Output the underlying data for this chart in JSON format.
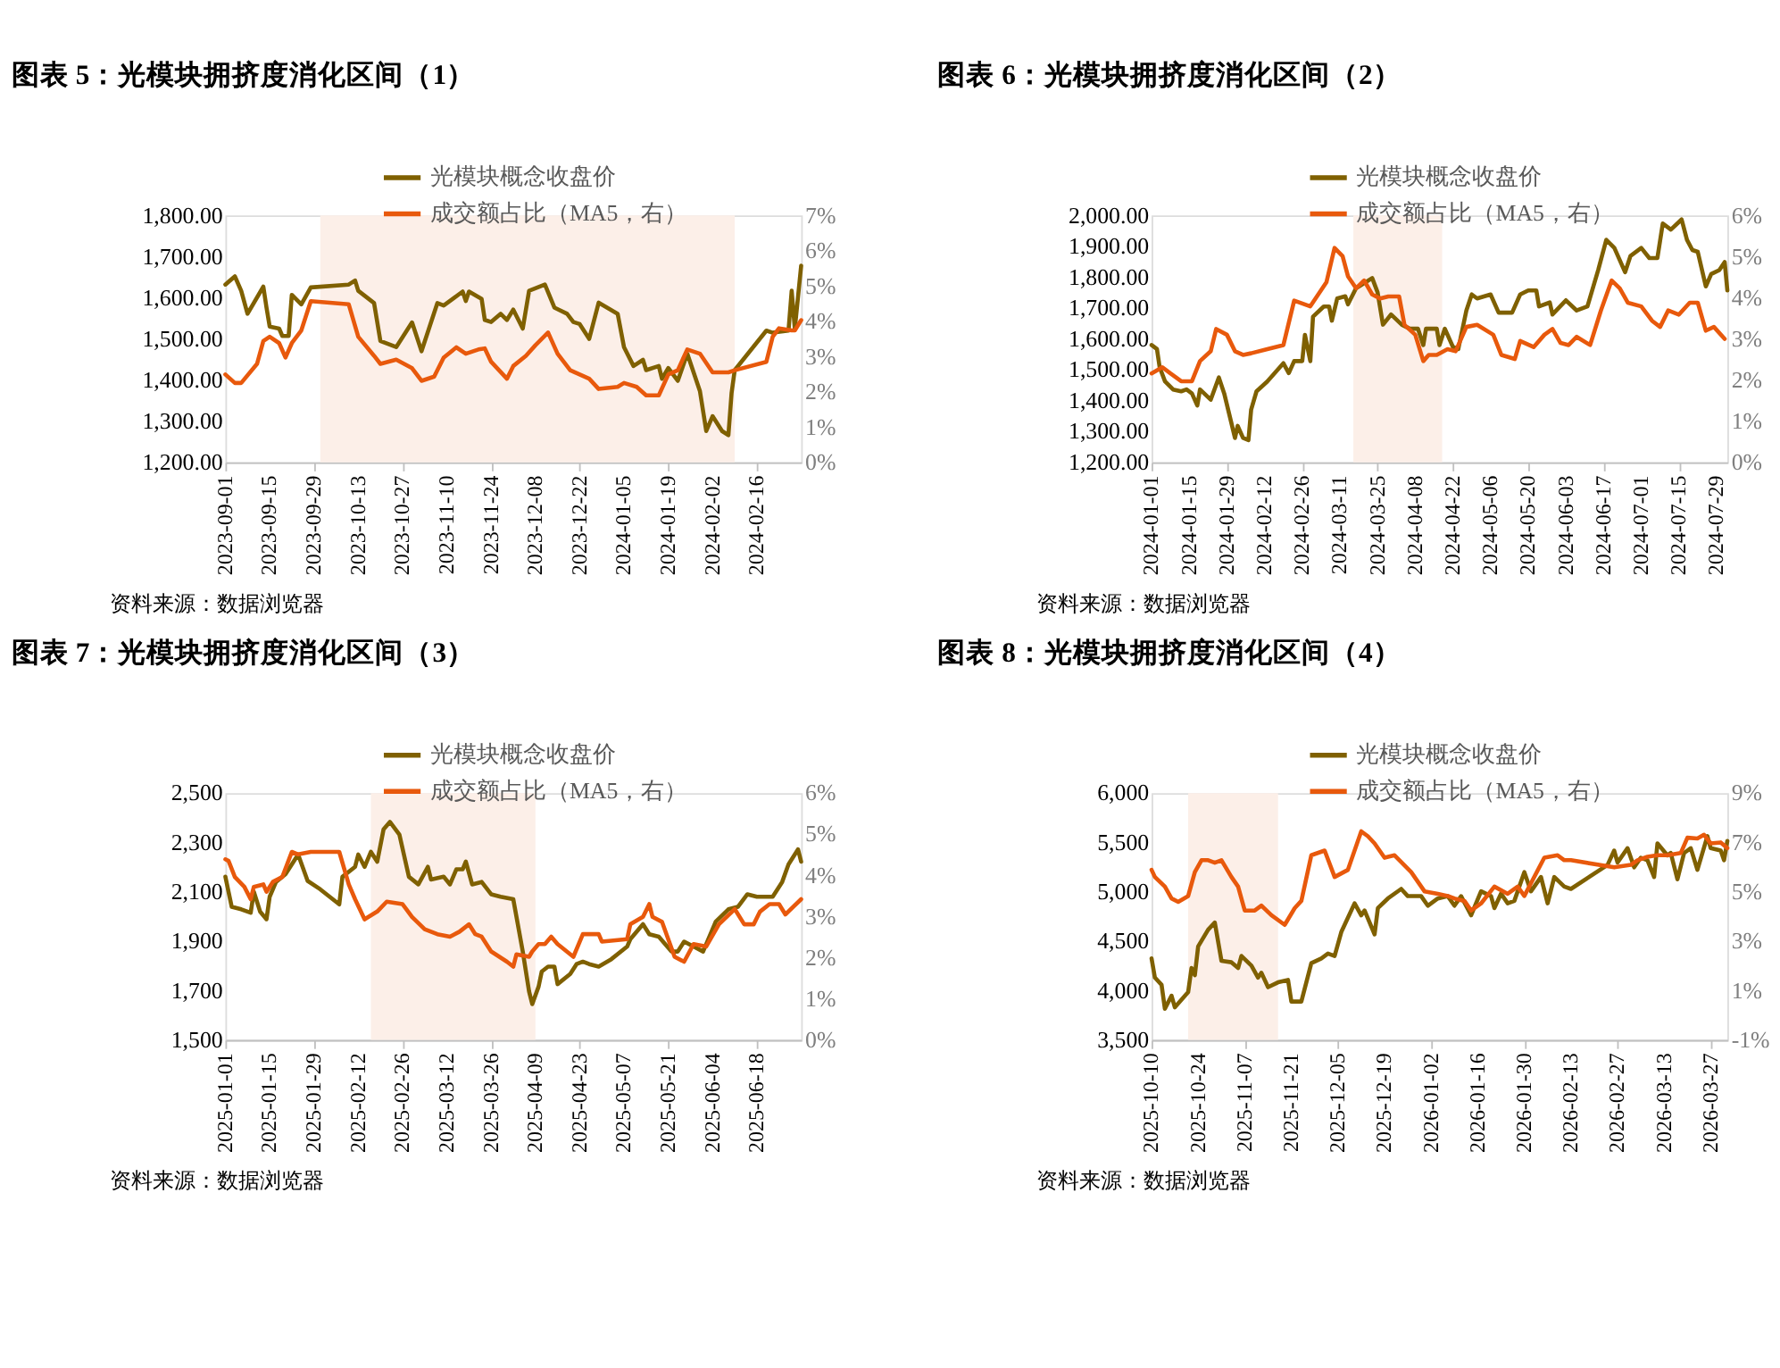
{
  "chart_data": [
    {
      "type": "line",
      "title": "图表 5：光模块拥挤度消化区间（1）",
      "annotations": [
        "资料来源：数据浏览器"
      ],
      "legend": "top",
      "grid": false,
      "xlim": [
        "2023-09-01",
        "2024-03-01"
      ],
      "xticks": [
        "2023-09-01",
        "2023-09-15",
        "2023-09-29",
        "2023-10-13",
        "2023-10-27",
        "2023-11-10",
        "2023-11-24",
        "2023-12-08",
        "2023-12-22",
        "2024-01-05",
        "2024-01-19",
        "2024-02-02",
        "2024-02-16"
      ],
      "ylim": [
        1200,
        1800
      ],
      "yticks": [
        {
          "value": 1200,
          "label": "1,200.00"
        },
        {
          "value": 1300,
          "label": "1,300.00"
        },
        {
          "value": 1400,
          "label": "1,400.00"
        },
        {
          "value": 1500,
          "label": "1,500.00"
        },
        {
          "value": 1600,
          "label": "1,600.00"
        },
        {
          "value": 1700,
          "label": "1,700.00"
        },
        {
          "value": 1800,
          "label": "1,800.00"
        }
      ],
      "y2lim": [
        0,
        7
      ],
      "y2ticks": [
        {
          "value": 0,
          "label": "0%"
        },
        {
          "value": 1,
          "label": "1%"
        },
        {
          "value": 2,
          "label": "2%"
        },
        {
          "value": 3,
          "label": "3%"
        },
        {
          "value": 4,
          "label": "4%"
        },
        {
          "value": 5,
          "label": "5%"
        },
        {
          "value": 6,
          "label": "6%"
        },
        {
          "value": 7,
          "label": "7%"
        }
      ],
      "bands": [
        {
          "axis": "x",
          "from": "2023-10-01",
          "to": "2024-02-09",
          "color": "#fcefe8"
        }
      ],
      "series": [
        {
          "name": "光模块概念收盘价",
          "color": "#7f6000",
          "x": [
            "2023-09-01",
            "2023-09-04",
            "2023-09-06",
            "2023-09-08",
            "2023-09-13",
            "2023-09-14",
            "2023-09-15",
            "2023-09-18",
            "2023-09-19",
            "2023-09-21",
            "2023-09-22",
            "2023-09-25",
            "2023-09-28",
            "2023-10-10",
            "2023-10-12",
            "2023-10-13",
            "2023-10-18",
            "2023-10-20",
            "2023-10-25",
            "2023-10-30",
            "2023-11-02",
            "2023-11-07",
            "2023-11-09",
            "2023-11-15",
            "2023-11-16",
            "2023-11-17",
            "2023-11-21",
            "2023-11-22",
            "2023-11-24",
            "2023-11-27",
            "2023-11-29",
            "2023-12-01",
            "2023-12-04",
            "2023-12-06",
            "2023-12-11",
            "2023-12-14",
            "2023-12-18",
            "2023-12-20",
            "2023-12-22",
            "2023-12-25",
            "2023-12-28",
            "2024-01-03",
            "2024-01-05",
            "2024-01-08",
            "2024-01-11",
            "2024-01-12",
            "2024-01-16",
            "2024-01-17",
            "2024-01-19",
            "2024-01-22",
            "2024-01-25",
            "2024-01-29",
            "2024-01-31",
            "2024-02-02",
            "2024-02-05",
            "2024-02-07",
            "2024-02-08",
            "2024-02-09",
            "2024-02-19",
            "2024-02-21",
            "2024-02-26",
            "2024-02-27",
            "2024-02-28",
            "2024-03-01"
          ],
          "values": [
            1632,
            1652,
            1617,
            1561,
            1627,
            1576,
            1530,
            1525,
            1507,
            1507,
            1607,
            1584,
            1625,
            1632,
            1642,
            1617,
            1587,
            1495,
            1480,
            1540,
            1470,
            1587,
            1581,
            1615,
            1592,
            1615,
            1597,
            1546,
            1541,
            1561,
            1546,
            1571,
            1525,
            1617,
            1632,
            1576,
            1561,
            1541,
            1536,
            1500,
            1588,
            1561,
            1480,
            1434,
            1449,
            1424,
            1434,
            1403,
            1429,
            1398,
            1464,
            1373,
            1276,
            1312,
            1276,
            1266,
            1368,
            1424,
            1520,
            1515,
            1520,
            1617,
            1525,
            1678
          ]
        },
        {
          "name": "成交额占比（MA5，右）",
          "color": "#e8590c",
          "axis": "y2",
          "x": [
            "2023-09-01",
            "2023-09-04",
            "2023-09-06",
            "2023-09-11",
            "2023-09-13",
            "2023-09-15",
            "2023-09-18",
            "2023-09-20",
            "2023-09-22",
            "2023-09-25",
            "2023-09-28",
            "2023-10-10",
            "2023-10-13",
            "2023-10-18",
            "2023-10-20",
            "2023-10-25",
            "2023-10-30",
            "2023-11-02",
            "2023-11-06",
            "2023-11-09",
            "2023-11-13",
            "2023-11-16",
            "2023-11-20",
            "2023-11-22",
            "2023-11-24",
            "2023-11-29",
            "2023-12-01",
            "2023-12-05",
            "2023-12-08",
            "2023-12-12",
            "2023-12-15",
            "2023-12-19",
            "2023-12-25",
            "2023-12-28",
            "2024-01-03",
            "2024-01-05",
            "2024-01-09",
            "2024-01-12",
            "2024-01-16",
            "2024-01-19",
            "2024-01-22",
            "2024-01-25",
            "2024-01-29",
            "2024-02-02",
            "2024-02-07",
            "2024-02-09",
            "2024-02-19",
            "2024-02-21",
            "2024-02-23",
            "2024-02-27",
            "2024-02-28",
            "2024-03-01"
          ],
          "values": [
            2.49,
            2.25,
            2.25,
            2.79,
            3.44,
            3.56,
            3.38,
            2.97,
            3.38,
            3.74,
            4.57,
            4.48,
            3.56,
            3.02,
            2.79,
            2.91,
            2.67,
            2.31,
            2.43,
            2.97,
            3.26,
            3.08,
            3.2,
            3.23,
            2.85,
            2.37,
            2.73,
            3.02,
            3.32,
            3.68,
            3.08,
            2.61,
            2.37,
            2.08,
            2.14,
            2.25,
            2.14,
            1.9,
            1.9,
            2.49,
            2.61,
            3.2,
            3.08,
            2.55,
            2.55,
            2.61,
            2.85,
            3.56,
            3.8,
            3.74,
            3.74,
            4.03
          ]
        }
      ]
    },
    {
      "type": "line",
      "title": "图表 6：光模块拥挤度消化区间（2）",
      "annotations": [
        "资料来源：数据浏览器"
      ],
      "legend": "top",
      "grid": false,
      "xlim": [
        "2024-01-01",
        "2024-08-02"
      ],
      "xticks": [
        "2024-01-01",
        "2024-01-15",
        "2024-01-29",
        "2024-02-12",
        "2024-02-26",
        "2024-03-11",
        "2024-03-25",
        "2024-04-08",
        "2024-04-22",
        "2024-05-06",
        "2024-05-20",
        "2024-06-03",
        "2024-06-17",
        "2024-07-01",
        "2024-07-15",
        "2024-07-29"
      ],
      "ylim": [
        1200,
        2000
      ],
      "yticks": [
        {
          "value": 1200,
          "label": "1,200.00"
        },
        {
          "value": 1300,
          "label": "1,300.00"
        },
        {
          "value": 1400,
          "label": "1,400.00"
        },
        {
          "value": 1500,
          "label": "1,500.00"
        },
        {
          "value": 1600,
          "label": "1,600.00"
        },
        {
          "value": 1700,
          "label": "1,700.00"
        },
        {
          "value": 1800,
          "label": "1,800.00"
        },
        {
          "value": 1900,
          "label": "1,900.00"
        },
        {
          "value": 2000,
          "label": "2,000.00"
        }
      ],
      "y2lim": [
        0,
        6
      ],
      "y2ticks": [
        {
          "value": 0,
          "label": "0%"
        },
        {
          "value": 1,
          "label": "1%"
        },
        {
          "value": 2,
          "label": "2%"
        },
        {
          "value": 3,
          "label": "3%"
        },
        {
          "value": 4,
          "label": "4%"
        },
        {
          "value": 5,
          "label": "5%"
        },
        {
          "value": 6,
          "label": "6%"
        }
      ],
      "bands": [
        {
          "axis": "x",
          "from": "2024-03-16",
          "to": "2024-04-18",
          "color": "#fcefe8"
        }
      ],
      "series": [
        {
          "name": "光模块概念收盘价",
          "color": "#7f6000",
          "x": [
            "2024-01-01",
            "2024-01-03",
            "2024-01-04",
            "2024-01-06",
            "2024-01-09",
            "2024-01-12",
            "2024-01-14",
            "2024-01-16",
            "2024-01-18",
            "2024-01-19",
            "2024-01-23",
            "2024-01-26",
            "2024-01-28",
            "2024-02-01",
            "2024-02-02",
            "2024-02-04",
            "2024-02-06",
            "2024-02-07",
            "2024-02-09",
            "2024-02-13",
            "2024-02-19",
            "2024-02-21",
            "2024-02-23",
            "2024-02-26",
            "2024-02-27",
            "2024-02-29",
            "2024-03-01",
            "2024-03-05",
            "2024-03-07",
            "2024-03-08",
            "2024-03-10",
            "2024-03-13",
            "2024-03-14",
            "2024-03-17",
            "2024-03-23",
            "2024-03-25",
            "2024-03-27",
            "2024-03-30",
            "2024-04-03",
            "2024-04-06",
            "2024-04-09",
            "2024-04-11",
            "2024-04-12",
            "2024-04-16",
            "2024-04-17",
            "2024-04-19",
            "2024-04-22",
            "2024-04-24",
            "2024-04-27",
            "2024-04-29",
            "2024-05-01",
            "2024-05-06",
            "2024-05-09",
            "2024-05-14",
            "2024-05-17",
            "2024-05-20",
            "2024-05-23",
            "2024-05-24",
            "2024-05-28",
            "2024-05-29",
            "2024-06-03",
            "2024-06-07",
            "2024-06-11",
            "2024-06-15",
            "2024-06-18",
            "2024-06-21",
            "2024-06-25",
            "2024-06-27",
            "2024-07-01",
            "2024-07-04",
            "2024-07-07",
            "2024-07-09",
            "2024-07-12",
            "2024-07-16",
            "2024-07-18",
            "2024-07-20",
            "2024-07-22",
            "2024-07-25",
            "2024-07-27",
            "2024-07-30",
            "2024-08-01",
            "2024-08-02"
          ],
          "values": [
            1580,
            1567,
            1508,
            1462,
            1436,
            1430,
            1436,
            1423,
            1384,
            1436,
            1403,
            1475,
            1423,
            1279,
            1318,
            1279,
            1272,
            1370,
            1430,
            1462,
            1521,
            1489,
            1528,
            1528,
            1613,
            1528,
            1672,
            1705,
            1705,
            1659,
            1731,
            1738,
            1712,
            1764,
            1797,
            1751,
            1646,
            1679,
            1646,
            1633,
            1633,
            1580,
            1633,
            1633,
            1580,
            1633,
            1574,
            1567,
            1692,
            1744,
            1731,
            1744,
            1685,
            1685,
            1744,
            1757,
            1757,
            1705,
            1718,
            1679,
            1725,
            1692,
            1705,
            1823,
            1921,
            1895,
            1816,
            1869,
            1895,
            1862,
            1862,
            1974,
            1954,
            1987,
            1921,
            1888,
            1882,
            1770,
            1810,
            1823,
            1849,
            1757
          ]
        },
        {
          "name": "成交额占比（MA5，右）",
          "color": "#e8590c",
          "axis": "y2",
          "x": [
            "2024-01-01",
            "2024-01-05",
            "2024-01-08",
            "2024-01-12",
            "2024-01-16",
            "2024-01-19",
            "2024-01-23",
            "2024-01-25",
            "2024-01-29",
            "2024-02-01",
            "2024-02-04",
            "2024-02-07",
            "2024-02-13",
            "2024-02-19",
            "2024-02-23",
            "2024-02-29",
            "2024-03-06",
            "2024-03-09",
            "2024-03-12",
            "2024-03-14",
            "2024-03-17",
            "2024-03-20",
            "2024-03-23",
            "2024-03-26",
            "2024-03-29",
            "2024-04-02",
            "2024-04-04",
            "2024-04-08",
            "2024-04-11",
            "2024-04-13",
            "2024-04-16",
            "2024-04-20",
            "2024-04-23",
            "2024-04-27",
            "2024-05-01",
            "2024-05-07",
            "2024-05-10",
            "2024-05-15",
            "2024-05-17",
            "2024-05-22",
            "2024-05-26",
            "2024-05-29",
            "2024-06-01",
            "2024-06-04",
            "2024-06-07",
            "2024-06-12",
            "2024-06-16",
            "2024-06-20",
            "2024-06-23",
            "2024-06-26",
            "2024-07-01",
            "2024-07-05",
            "2024-07-08",
            "2024-07-11",
            "2024-07-15",
            "2024-07-19",
            "2024-07-22",
            "2024-07-25",
            "2024-07-28",
            "2024-08-01"
          ],
          "values": [
            2.16,
            2.31,
            2.16,
            1.97,
            1.97,
            2.46,
            2.7,
            3.24,
            3.1,
            2.7,
            2.61,
            2.65,
            2.75,
            2.85,
            3.93,
            3.79,
            4.38,
            5.21,
            5.01,
            4.52,
            4.23,
            4.42,
            4.08,
            3.98,
            4.03,
            4.03,
            3.34,
            3.1,
            2.46,
            2.61,
            2.61,
            2.75,
            2.7,
            3.29,
            3.34,
            3.1,
            2.61,
            2.51,
            2.95,
            2.8,
            3.1,
            3.24,
            2.9,
            2.85,
            3.05,
            2.85,
            3.69,
            4.42,
            4.23,
            3.88,
            3.79,
            3.44,
            3.29,
            3.69,
            3.59,
            3.88,
            3.88,
            3.2,
            3.29,
            3.0
          ]
        }
      ]
    },
    {
      "type": "line",
      "title": "图表 7：光模块拥挤度消化区间（3）",
      "annotations": [
        "资料来源：数据浏览器"
      ],
      "legend": "top",
      "grid": false,
      "xlim": [
        "2025-01-01",
        "2025-07-02"
      ],
      "xticks": [
        "2025-01-01",
        "2025-01-15",
        "2025-01-29",
        "2025-02-12",
        "2025-02-26",
        "2025-03-12",
        "2025-03-26",
        "2025-04-09",
        "2025-04-23",
        "2025-05-07",
        "2025-05-21",
        "2025-06-04",
        "2025-06-18"
      ],
      "ylim": [
        1500,
        2500
      ],
      "yticks": [
        {
          "value": 1500,
          "label": "1,500"
        },
        {
          "value": 1700,
          "label": "1,700"
        },
        {
          "value": 1900,
          "label": "1,900"
        },
        {
          "value": 2100,
          "label": "2,100"
        },
        {
          "value": 2300,
          "label": "2,300"
        },
        {
          "value": 2500,
          "label": "2,500"
        }
      ],
      "y2lim": [
        0,
        6
      ],
      "y2ticks": [
        {
          "value": 0,
          "label": "0%"
        },
        {
          "value": 1,
          "label": "1%"
        },
        {
          "value": 2,
          "label": "2%"
        },
        {
          "value": 3,
          "label": "3%"
        },
        {
          "value": 4,
          "label": "4%"
        },
        {
          "value": 5,
          "label": "5%"
        },
        {
          "value": 6,
          "label": "6%"
        }
      ],
      "bands": [
        {
          "axis": "x",
          "from": "2025-02-16",
          "to": "2025-04-09",
          "color": "#fcefe8"
        }
      ],
      "series": [
        {
          "name": "光模块概念收盘价",
          "color": "#7f6000",
          "x": [
            "2025-01-01",
            "2025-01-02",
            "2025-01-03",
            "2025-01-06",
            "2025-01-09",
            "2025-01-10",
            "2025-01-12",
            "2025-01-14",
            "2025-01-15",
            "2025-01-17",
            "2025-01-20",
            "2025-01-24",
            "2025-01-27",
            "2025-01-31",
            "2025-02-06",
            "2025-02-07",
            "2025-02-11",
            "2025-02-12",
            "2025-02-14",
            "2025-02-16",
            "2025-02-18",
            "2025-02-20",
            "2025-02-22",
            "2025-02-25",
            "2025-02-28",
            "2025-03-03",
            "2025-03-06",
            "2025-03-07",
            "2025-03-11",
            "2025-03-13",
            "2025-03-15",
            "2025-03-17",
            "2025-03-18",
            "2025-03-20",
            "2025-03-23",
            "2025-03-26",
            "2025-03-29",
            "2025-04-02",
            "2025-04-05",
            "2025-04-07",
            "2025-04-08",
            "2025-04-10",
            "2025-04-11",
            "2025-04-13",
            "2025-04-15",
            "2025-04-16",
            "2025-04-20",
            "2025-04-22",
            "2025-04-24",
            "2025-04-26",
            "2025-04-29",
            "2025-05-03",
            "2025-05-08",
            "2025-05-09",
            "2025-05-13",
            "2025-05-15",
            "2025-05-18",
            "2025-05-22",
            "2025-05-24",
            "2025-05-26",
            "2025-05-29",
            "2025-06-01",
            "2025-06-05",
            "2025-06-09",
            "2025-06-12",
            "2025-06-15",
            "2025-06-18",
            "2025-06-23",
            "2025-06-26",
            "2025-06-28",
            "2025-07-01",
            "2025-07-02"
          ],
          "values": [
            2161,
            2100,
            2039,
            2029,
            2015,
            2100,
            2019,
            1989,
            2080,
            2140,
            2171,
            2251,
            2144,
            2110,
            2049,
            2161,
            2201,
            2251,
            2201,
            2262,
            2222,
            2353,
            2383,
            2332,
            2161,
            2130,
            2201,
            2150,
            2161,
            2130,
            2191,
            2191,
            2222,
            2130,
            2140,
            2090,
            2080,
            2070,
            1858,
            1696,
            1645,
            1716,
            1777,
            1797,
            1797,
            1726,
            1767,
            1807,
            1817,
            1807,
            1797,
            1827,
            1878,
            1908,
            1969,
            1928,
            1918,
            1858,
            1858,
            1898,
            1878,
            1858,
            1979,
            2029,
            2039,
            2090,
            2080,
            2080,
            2140,
            2211,
            2272,
            2222
          ]
        },
        {
          "name": "成交额占比（MA5，右）",
          "color": "#e8590c",
          "axis": "y2",
          "x": [
            "2025-01-01",
            "2025-01-02",
            "2025-01-04",
            "2025-01-07",
            "2025-01-09",
            "2025-01-10",
            "2025-01-13",
            "2025-01-14",
            "2025-01-16",
            "2025-01-19",
            "2025-01-22",
            "2025-01-24",
            "2025-01-28",
            "2025-02-06",
            "2025-02-09",
            "2025-02-11",
            "2025-02-14",
            "2025-02-18",
            "2025-02-21",
            "2025-02-26",
            "2025-03-01",
            "2025-03-05",
            "2025-03-09",
            "2025-03-13",
            "2025-03-16",
            "2025-03-19",
            "2025-03-21",
            "2025-03-23",
            "2025-03-26",
            "2025-03-31",
            "2025-04-02",
            "2025-04-03",
            "2025-04-07",
            "2025-04-08",
            "2025-04-10",
            "2025-04-12",
            "2025-04-14",
            "2025-04-16",
            "2025-04-21",
            "2025-04-24",
            "2025-04-29",
            "2025-04-30",
            "2025-05-08",
            "2025-05-09",
            "2025-05-13",
            "2025-05-15",
            "2025-05-16",
            "2025-05-19",
            "2025-05-23",
            "2025-05-26",
            "2025-05-29",
            "2025-06-02",
            "2025-06-06",
            "2025-06-11",
            "2025-06-14",
            "2025-06-17",
            "2025-06-19",
            "2025-06-22",
            "2025-06-25",
            "2025-06-27",
            "2025-07-02"
          ],
          "values": [
            4.39,
            4.35,
            3.96,
            3.72,
            3.42,
            3.72,
            3.78,
            3.6,
            3.84,
            3.96,
            4.57,
            4.51,
            4.57,
            4.57,
            3.78,
            3.42,
            2.93,
            3.12,
            3.36,
            3.3,
            2.99,
            2.69,
            2.57,
            2.51,
            2.63,
            2.81,
            2.57,
            2.51,
            2.15,
            1.9,
            1.78,
            2.08,
            2.02,
            2.15,
            2.33,
            2.33,
            2.51,
            2.33,
            2.02,
            2.57,
            2.57,
            2.39,
            2.45,
            2.81,
            2.99,
            3.3,
            2.99,
            2.87,
            2.02,
            1.9,
            2.33,
            2.27,
            2.81,
            3.18,
            2.81,
            2.81,
            3.12,
            3.3,
            3.3,
            3.05,
            3.42
          ]
        }
      ]
    },
    {
      "type": "line",
      "title": "图表 8：光模块拥挤度消化区间（4）",
      "annotations": [
        "资料来源：数据浏览器"
      ],
      "legend": "top",
      "grid": false,
      "xlim": [
        "2025-10-10",
        "2026-04-01"
      ],
      "xticks": [
        "2025-10-10",
        "2025-10-24",
        "2025-11-07",
        "2025-11-21",
        "2025-12-05",
        "2025-12-19",
        "2026-01-02",
        "2026-01-16",
        "2026-01-30",
        "2026-02-13",
        "2026-02-27",
        "2026-03-13",
        "2026-03-27"
      ],
      "ylim": [
        3500,
        6000
      ],
      "yticks": [
        {
          "value": 3500,
          "label": "3,500"
        },
        {
          "value": 4000,
          "label": "4,000"
        },
        {
          "value": 4500,
          "label": "4,500"
        },
        {
          "value": 5000,
          "label": "5,000"
        },
        {
          "value": 5500,
          "label": "5,500"
        },
        {
          "value": 6000,
          "label": "6,000"
        }
      ],
      "y2lim": [
        -1,
        9
      ],
      "y2ticks": [
        {
          "value": -1,
          "label": "-1%"
        },
        {
          "value": 1,
          "label": "1%"
        },
        {
          "value": 3,
          "label": "3%"
        },
        {
          "value": 5,
          "label": "5%"
        },
        {
          "value": 7,
          "label": "7%"
        },
        {
          "value": 9,
          "label": "9%"
        }
      ],
      "bands": [
        {
          "axis": "x",
          "from": "2025-10-21",
          "to": "2025-11-17",
          "color": "#fcefe8"
        }
      ],
      "series": [
        {
          "name": "光模块概念收盘价",
          "color": "#7f6000",
          "x": [
            "2025-10-10",
            "2025-10-11",
            "2025-10-13",
            "2025-10-14",
            "2025-10-16",
            "2025-10-17",
            "2025-10-21",
            "2025-10-22",
            "2025-10-23",
            "2025-10-24",
            "2025-10-27",
            "2025-10-29",
            "2025-10-31",
            "2025-11-03",
            "2025-11-05",
            "2025-11-06",
            "2025-11-09",
            "2025-11-11",
            "2025-11-12",
            "2025-11-14",
            "2025-11-17",
            "2025-11-20",
            "2025-11-21",
            "2025-11-24",
            "2025-11-27",
            "2025-11-30",
            "2025-12-02",
            "2025-12-04",
            "2025-12-06",
            "2025-12-10",
            "2025-12-12",
            "2025-12-13",
            "2025-12-16",
            "2025-12-17",
            "2025-12-20",
            "2025-12-24",
            "2025-12-26",
            "2025-12-30",
            "2026-01-01",
            "2026-01-04",
            "2026-01-07",
            "2026-01-09",
            "2026-01-11",
            "2026-01-14",
            "2026-01-17",
            "2026-01-20",
            "2026-01-21",
            "2026-01-23",
            "2026-01-25",
            "2026-01-27",
            "2026-01-30",
            "2026-02-01",
            "2026-02-04",
            "2026-02-06",
            "2026-02-08",
            "2026-02-11",
            "2026-02-13",
            "2026-02-24",
            "2026-02-26",
            "2026-02-27",
            "2026-03-02",
            "2026-03-04",
            "2026-03-06",
            "2026-03-08",
            "2026-03-10",
            "2026-03-11",
            "2026-03-14",
            "2026-03-15",
            "2026-03-17",
            "2026-03-19",
            "2026-03-21",
            "2026-03-23",
            "2026-03-26",
            "2026-03-27",
            "2026-03-30",
            "2026-03-31",
            "2026-04-01"
          ],
          "values": [
            4325,
            4131,
            4058,
            3816,
            3947,
            3830,
            3985,
            4228,
            4155,
            4447,
            4617,
            4689,
            4301,
            4286,
            4228,
            4350,
            4252,
            4131,
            4180,
            4034,
            4083,
            4107,
            3888,
            3888,
            4277,
            4325,
            4374,
            4350,
            4592,
            4883,
            4762,
            4811,
            4568,
            4835,
            4932,
            5029,
            4956,
            4956,
            4859,
            4932,
            4956,
            4859,
            4956,
            4762,
            5005,
            4956,
            4835,
            4981,
            4883,
            4908,
            5199,
            5005,
            5150,
            4883,
            5150,
            5053,
            5029,
            5272,
            5417,
            5296,
            5442,
            5248,
            5345,
            5320,
            5150,
            5490,
            5369,
            5393,
            5126,
            5393,
            5442,
            5223,
            5563,
            5442,
            5417,
            5320,
            5515
          ]
        },
        {
          "name": "成交额占比（MA5，右）",
          "color": "#e8590c",
          "axis": "y2",
          "x": [
            "2025-10-10",
            "2025-10-11",
            "2025-10-14",
            "2025-10-16",
            "2025-10-18",
            "2025-10-21",
            "2025-10-23",
            "2025-10-25",
            "2025-10-27",
            "2025-10-29",
            "2025-10-31",
            "2025-11-03",
            "2025-11-05",
            "2025-11-07",
            "2025-11-10",
            "2025-11-12",
            "2025-11-15",
            "2025-11-19",
            "2025-11-22",
            "2025-11-24",
            "2025-11-27",
            "2025-12-01",
            "2025-12-04",
            "2025-12-08",
            "2025-12-12",
            "2025-12-14",
            "2025-12-16",
            "2025-12-19",
            "2025-12-22",
            "2025-12-27",
            "2025-12-31",
            "2026-01-04",
            "2026-01-07",
            "2026-01-09",
            "2026-01-12",
            "2026-01-14",
            "2026-01-17",
            "2026-01-21",
            "2026-01-25",
            "2026-01-28",
            "2026-01-30",
            "2026-02-05",
            "2026-02-09",
            "2026-02-11",
            "2026-02-13",
            "2026-02-26",
            "2026-03-03",
            "2026-03-05",
            "2026-03-08",
            "2026-03-11",
            "2026-03-14",
            "2026-03-18",
            "2026-03-20",
            "2026-03-23",
            "2026-03-25",
            "2026-03-27",
            "2026-03-30",
            "2026-04-01"
          ],
          "values": [
            5.89,
            5.6,
            5.21,
            4.73,
            4.59,
            4.83,
            5.8,
            6.28,
            6.28,
            6.18,
            6.28,
            5.6,
            5.21,
            4.24,
            4.24,
            4.44,
            4.05,
            3.66,
            4.34,
            4.63,
            6.48,
            6.67,
            5.6,
            5.89,
            7.45,
            7.25,
            6.96,
            6.38,
            6.48,
            5.8,
            5.02,
            4.92,
            4.83,
            4.73,
            4.63,
            4.24,
            4.53,
            5.21,
            4.92,
            5.21,
            4.83,
            6.38,
            6.48,
            6.28,
            6.28,
            5.99,
            6.09,
            6.28,
            6.42,
            6.48,
            6.48,
            6.57,
            7.19,
            7.16,
            7.31,
            6.96,
            7.0,
            6.77
          ]
        }
      ]
    }
  ]
}
